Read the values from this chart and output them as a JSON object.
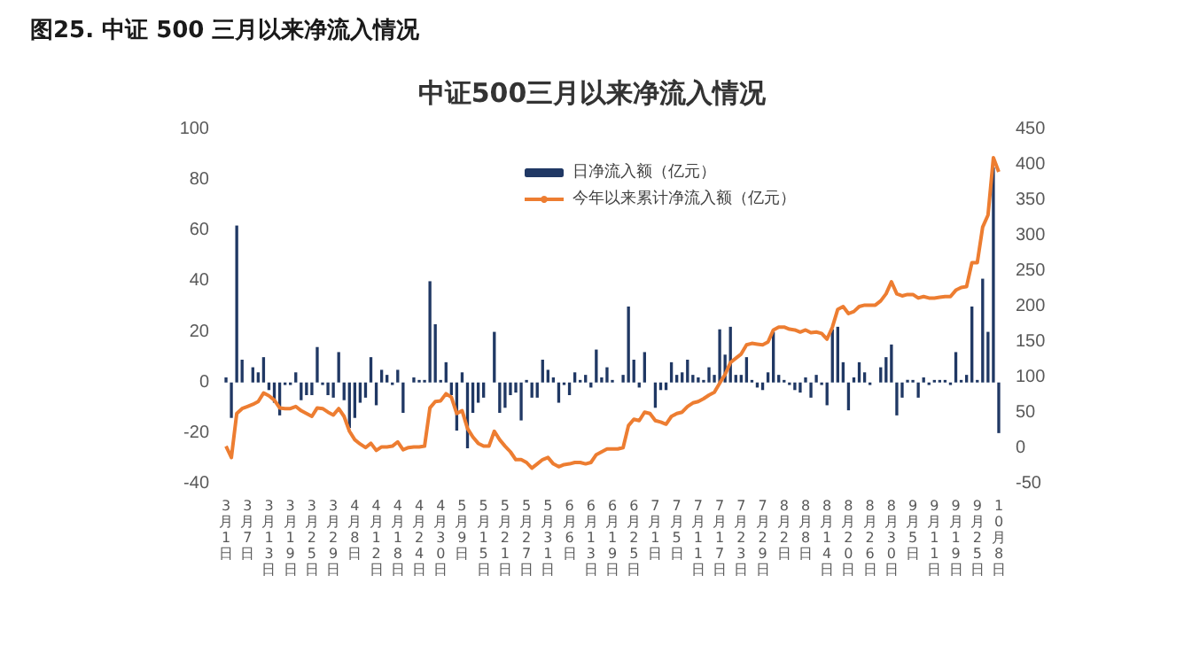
{
  "chart_data": {
    "type": "bar",
    "title": "图25. 中证 500 三月以来净流入情况",
    "subtitle": "中证500三月以来净流入情况",
    "categories": [
      "3月1日",
      null,
      null,
      null,
      "3月7日",
      null,
      null,
      null,
      "3月13日",
      null,
      null,
      null,
      "3月19日",
      null,
      null,
      null,
      "3月25日",
      null,
      null,
      null,
      "3月29日",
      null,
      null,
      null,
      "4月8日",
      null,
      null,
      null,
      "4月12日",
      null,
      null,
      null,
      "4月18日",
      null,
      null,
      null,
      "4月24日",
      null,
      null,
      null,
      "4月30日",
      null,
      null,
      null,
      "5月9日",
      null,
      null,
      null,
      "5月15日",
      null,
      null,
      null,
      "5月21日",
      null,
      null,
      null,
      "5月27日",
      null,
      null,
      null,
      "5月31日",
      null,
      null,
      null,
      "6月6日",
      null,
      null,
      null,
      "6月13日",
      null,
      null,
      null,
      "6月19日",
      null,
      null,
      null,
      "6月25日",
      null,
      null,
      null,
      "7月1日",
      null,
      null,
      null,
      "7月5日",
      null,
      null,
      null,
      "7月11日",
      null,
      null,
      null,
      "7月17日",
      null,
      null,
      null,
      "7月23日",
      null,
      null,
      null,
      "7月29日",
      null,
      null,
      null,
      "8月2日",
      null,
      null,
      null,
      "8月8日",
      null,
      null,
      null,
      "8月14日",
      null,
      null,
      null,
      "8月20日",
      null,
      null,
      null,
      "8月26日",
      null,
      null,
      null,
      "8月30日",
      null,
      null,
      null,
      "9月5日",
      null,
      null,
      null,
      "9月11日",
      null,
      null,
      null,
      "9月19日",
      null,
      null,
      null,
      "9月25日",
      null,
      null,
      null,
      "10月8日"
    ],
    "series": [
      {
        "name": "日净流入额（亿元）",
        "color": "#203864",
        "values": [
          2,
          -14,
          62,
          9,
          0,
          6,
          4,
          10,
          -3,
          -8,
          -13,
          -1,
          -1,
          4,
          -7,
          -5,
          -5,
          14,
          -1,
          -5,
          -6,
          12,
          -7,
          -18,
          -14,
          -8,
          -6,
          10,
          -9,
          5,
          3,
          -1,
          5,
          -12,
          0,
          2,
          1,
          1,
          40,
          23,
          1,
          8,
          -5,
          -19,
          4,
          -26,
          -12,
          -8,
          -6,
          0,
          20,
          -12,
          -10,
          -5,
          -4,
          -15,
          1,
          -6,
          -6,
          9,
          5,
          2,
          -8,
          -1,
          -5,
          4,
          1,
          3,
          -2,
          13,
          2,
          6,
          1,
          0,
          3,
          30,
          9,
          -2,
          12,
          0,
          -10,
          -3,
          -3,
          8,
          3,
          4,
          9,
          3,
          2,
          1,
          6,
          3,
          21,
          11,
          22,
          3,
          3,
          10,
          1,
          -2,
          -3,
          4,
          20,
          3,
          1,
          -1,
          -3,
          -4,
          2,
          -6,
          3,
          -1,
          -9,
          21,
          22,
          8,
          -11,
          2,
          8,
          4,
          -1,
          0,
          6,
          10,
          15,
          -13,
          -6,
          1,
          1,
          -6,
          2,
          -1,
          1,
          1,
          1,
          -1,
          12,
          1,
          3,
          30,
          1,
          41,
          20,
          85,
          -20
        ]
      },
      {
        "name": "今年以来累计净流入额（亿元）",
        "type": "line",
        "axis": "y2",
        "color": "#ed7d31",
        "values": [
          3,
          -13,
          49,
          56,
          59,
          62,
          66,
          78,
          74,
          68,
          57,
          56,
          56,
          59,
          53,
          49,
          45,
          57,
          56,
          51,
          47,
          56,
          45,
          24,
          12,
          6,
          1,
          7,
          -3,
          2,
          2,
          3,
          9,
          -2,
          1,
          2,
          2,
          3,
          57,
          66,
          67,
          77,
          72,
          49,
          53,
          28,
          16,
          7,
          3,
          3,
          24,
          12,
          3,
          -5,
          -16,
          -16,
          -20,
          -28,
          -22,
          -16,
          -13,
          -22,
          -26,
          -23,
          -22,
          -20,
          -20,
          -22,
          -20,
          -9,
          -5,
          -1,
          -1,
          -1,
          1,
          32,
          41,
          39,
          51,
          49,
          39,
          37,
          34,
          45,
          49,
          51,
          59,
          64,
          66,
          70,
          75,
          79,
          92,
          104,
          121,
          127,
          133,
          146,
          148,
          147,
          146,
          150,
          167,
          171,
          171,
          168,
          167,
          164,
          167,
          163,
          164,
          162,
          154,
          171,
          196,
          200,
          190,
          193,
          200,
          202,
          202,
          202,
          208,
          218,
          235,
          218,
          215,
          217,
          217,
          212,
          214,
          212,
          212,
          213,
          214,
          214,
          223,
          227,
          228,
          262,
          262,
          312,
          329,
          410,
          390
        ]
      }
    ],
    "ylim": [
      -40,
      100
    ],
    "yticks": [
      -40,
      -20,
      0,
      20,
      40,
      60,
      80,
      100
    ],
    "y2lim": [
      -50,
      450
    ],
    "y2ticks": [
      -50,
      0,
      50,
      100,
      150,
      200,
      250,
      300,
      350,
      400,
      450
    ],
    "grid": false,
    "legend": "top",
    "marker": "none"
  }
}
